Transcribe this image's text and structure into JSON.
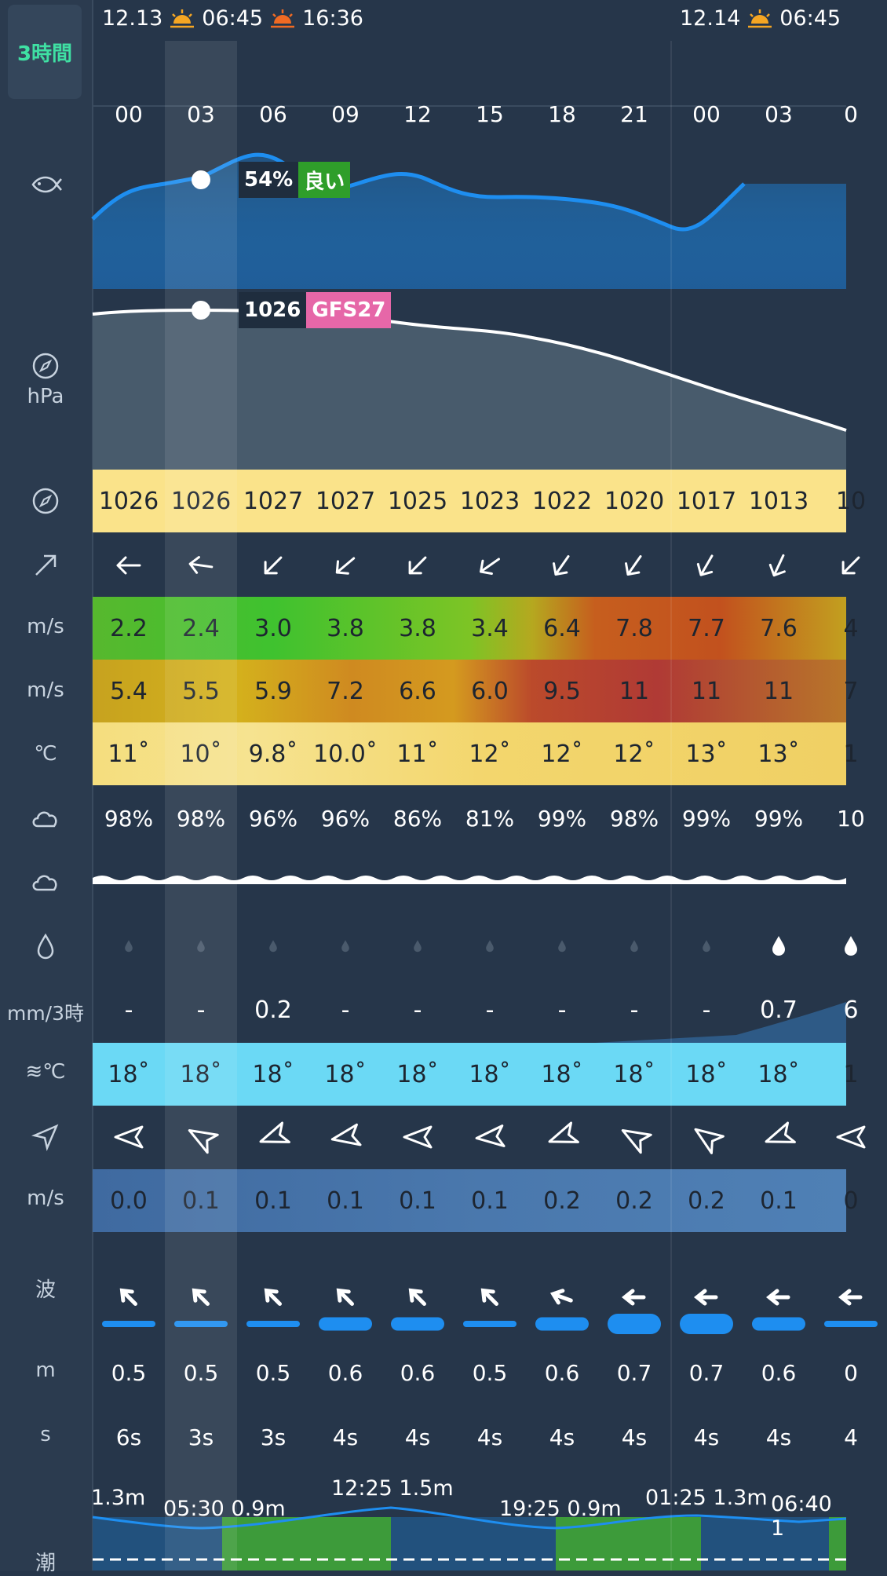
{
  "mode_button": "3時間",
  "days": [
    {
      "date": "12.13",
      "sunrise": "06:45",
      "sunset": "16:36"
    },
    {
      "date": "12.14",
      "sunrise": "06:45"
    }
  ],
  "hours": [
    "00",
    "03",
    "06",
    "09",
    "12",
    "15",
    "18",
    "21",
    "00",
    "03",
    "0"
  ],
  "labels": {
    "pressure_unit": "hPa",
    "wind_unit": "m/s",
    "gust_unit": "m/s",
    "temp_unit": "℃",
    "rain_unit": "mm/3時",
    "sea_temp_unit": "≋℃",
    "current_unit": "m/s",
    "wave_label": "波",
    "wave_height_unit": "m",
    "wave_period_unit": "s",
    "tide_label": "潮"
  },
  "fish_index": {
    "percent": "54%",
    "rating": "良い",
    "rating_color": "#2f9e2a"
  },
  "pressure_tag": {
    "value": "1026",
    "model": "GFS27",
    "model_color": "#e667a8"
  },
  "pressure": [
    "1026",
    "1026",
    "1027",
    "1027",
    "1025",
    "1023",
    "1022",
    "1020",
    "1017",
    "1013",
    "10"
  ],
  "wind_dir_deg": [
    270,
    278,
    225,
    230,
    225,
    235,
    215,
    215,
    210,
    205,
    225
  ],
  "wind_speed": [
    "2.2",
    "2.4",
    "3.0",
    "3.8",
    "3.8",
    "3.4",
    "6.4",
    "7.8",
    "7.7",
    "7.6",
    "4"
  ],
  "gust": [
    "5.4",
    "5.5",
    "5.9",
    "7.2",
    "6.6",
    "6.0",
    "9.5",
    "11",
    "11",
    "11",
    "7"
  ],
  "temperature": [
    "11˚",
    "10˚",
    "9.8˚",
    "10.0˚",
    "11˚",
    "12˚",
    "12˚",
    "12˚",
    "13˚",
    "13˚",
    "1"
  ],
  "cloud": [
    "98%",
    "98%",
    "96%",
    "96%",
    "86%",
    "81%",
    "99%",
    "98%",
    "99%",
    "99%",
    "10"
  ],
  "rain": [
    "-",
    "-",
    "0.2",
    "-",
    "-",
    "-",
    "-",
    "-",
    "-",
    "0.7",
    "6"
  ],
  "sea_temp": [
    "18˚",
    "18˚",
    "18˚",
    "18˚",
    "18˚",
    "18˚",
    "18˚",
    "18˚",
    "18˚",
    "18˚",
    "1"
  ],
  "current_dir_deg": [
    270,
    300,
    250,
    260,
    270,
    265,
    250,
    300,
    305,
    250,
    270
  ],
  "current_speed": [
    "0.0",
    "0.1",
    "0.1",
    "0.1",
    "0.1",
    "0.1",
    "0.2",
    "0.2",
    "0.2",
    "0.1",
    "0"
  ],
  "wave_height": [
    "0.5",
    "0.5",
    "0.5",
    "0.6",
    "0.6",
    "0.5",
    "0.6",
    "0.7",
    "0.7",
    "0.6",
    "0"
  ],
  "wave_period": [
    "6s",
    "3s",
    "3s",
    "4s",
    "4s",
    "4s",
    "4s",
    "4s",
    "4s",
    "4s",
    "4"
  ],
  "tide_labels": [
    {
      "text": "1.3m"
    },
    {
      "text": "05:30 0.9m"
    },
    {
      "text": "12:25 1.5m"
    },
    {
      "text": "19:25 0.9m"
    },
    {
      "text": "01:25 1.3m"
    },
    {
      "text": "06:40 1"
    }
  ],
  "colors": {
    "accent": "#3fe0a3",
    "fish_line": "#1e8ef0",
    "pressure_band": "#fae38a",
    "sea_temp_band": "#6bd9f5",
    "current_band": "#4a78ad"
  }
}
